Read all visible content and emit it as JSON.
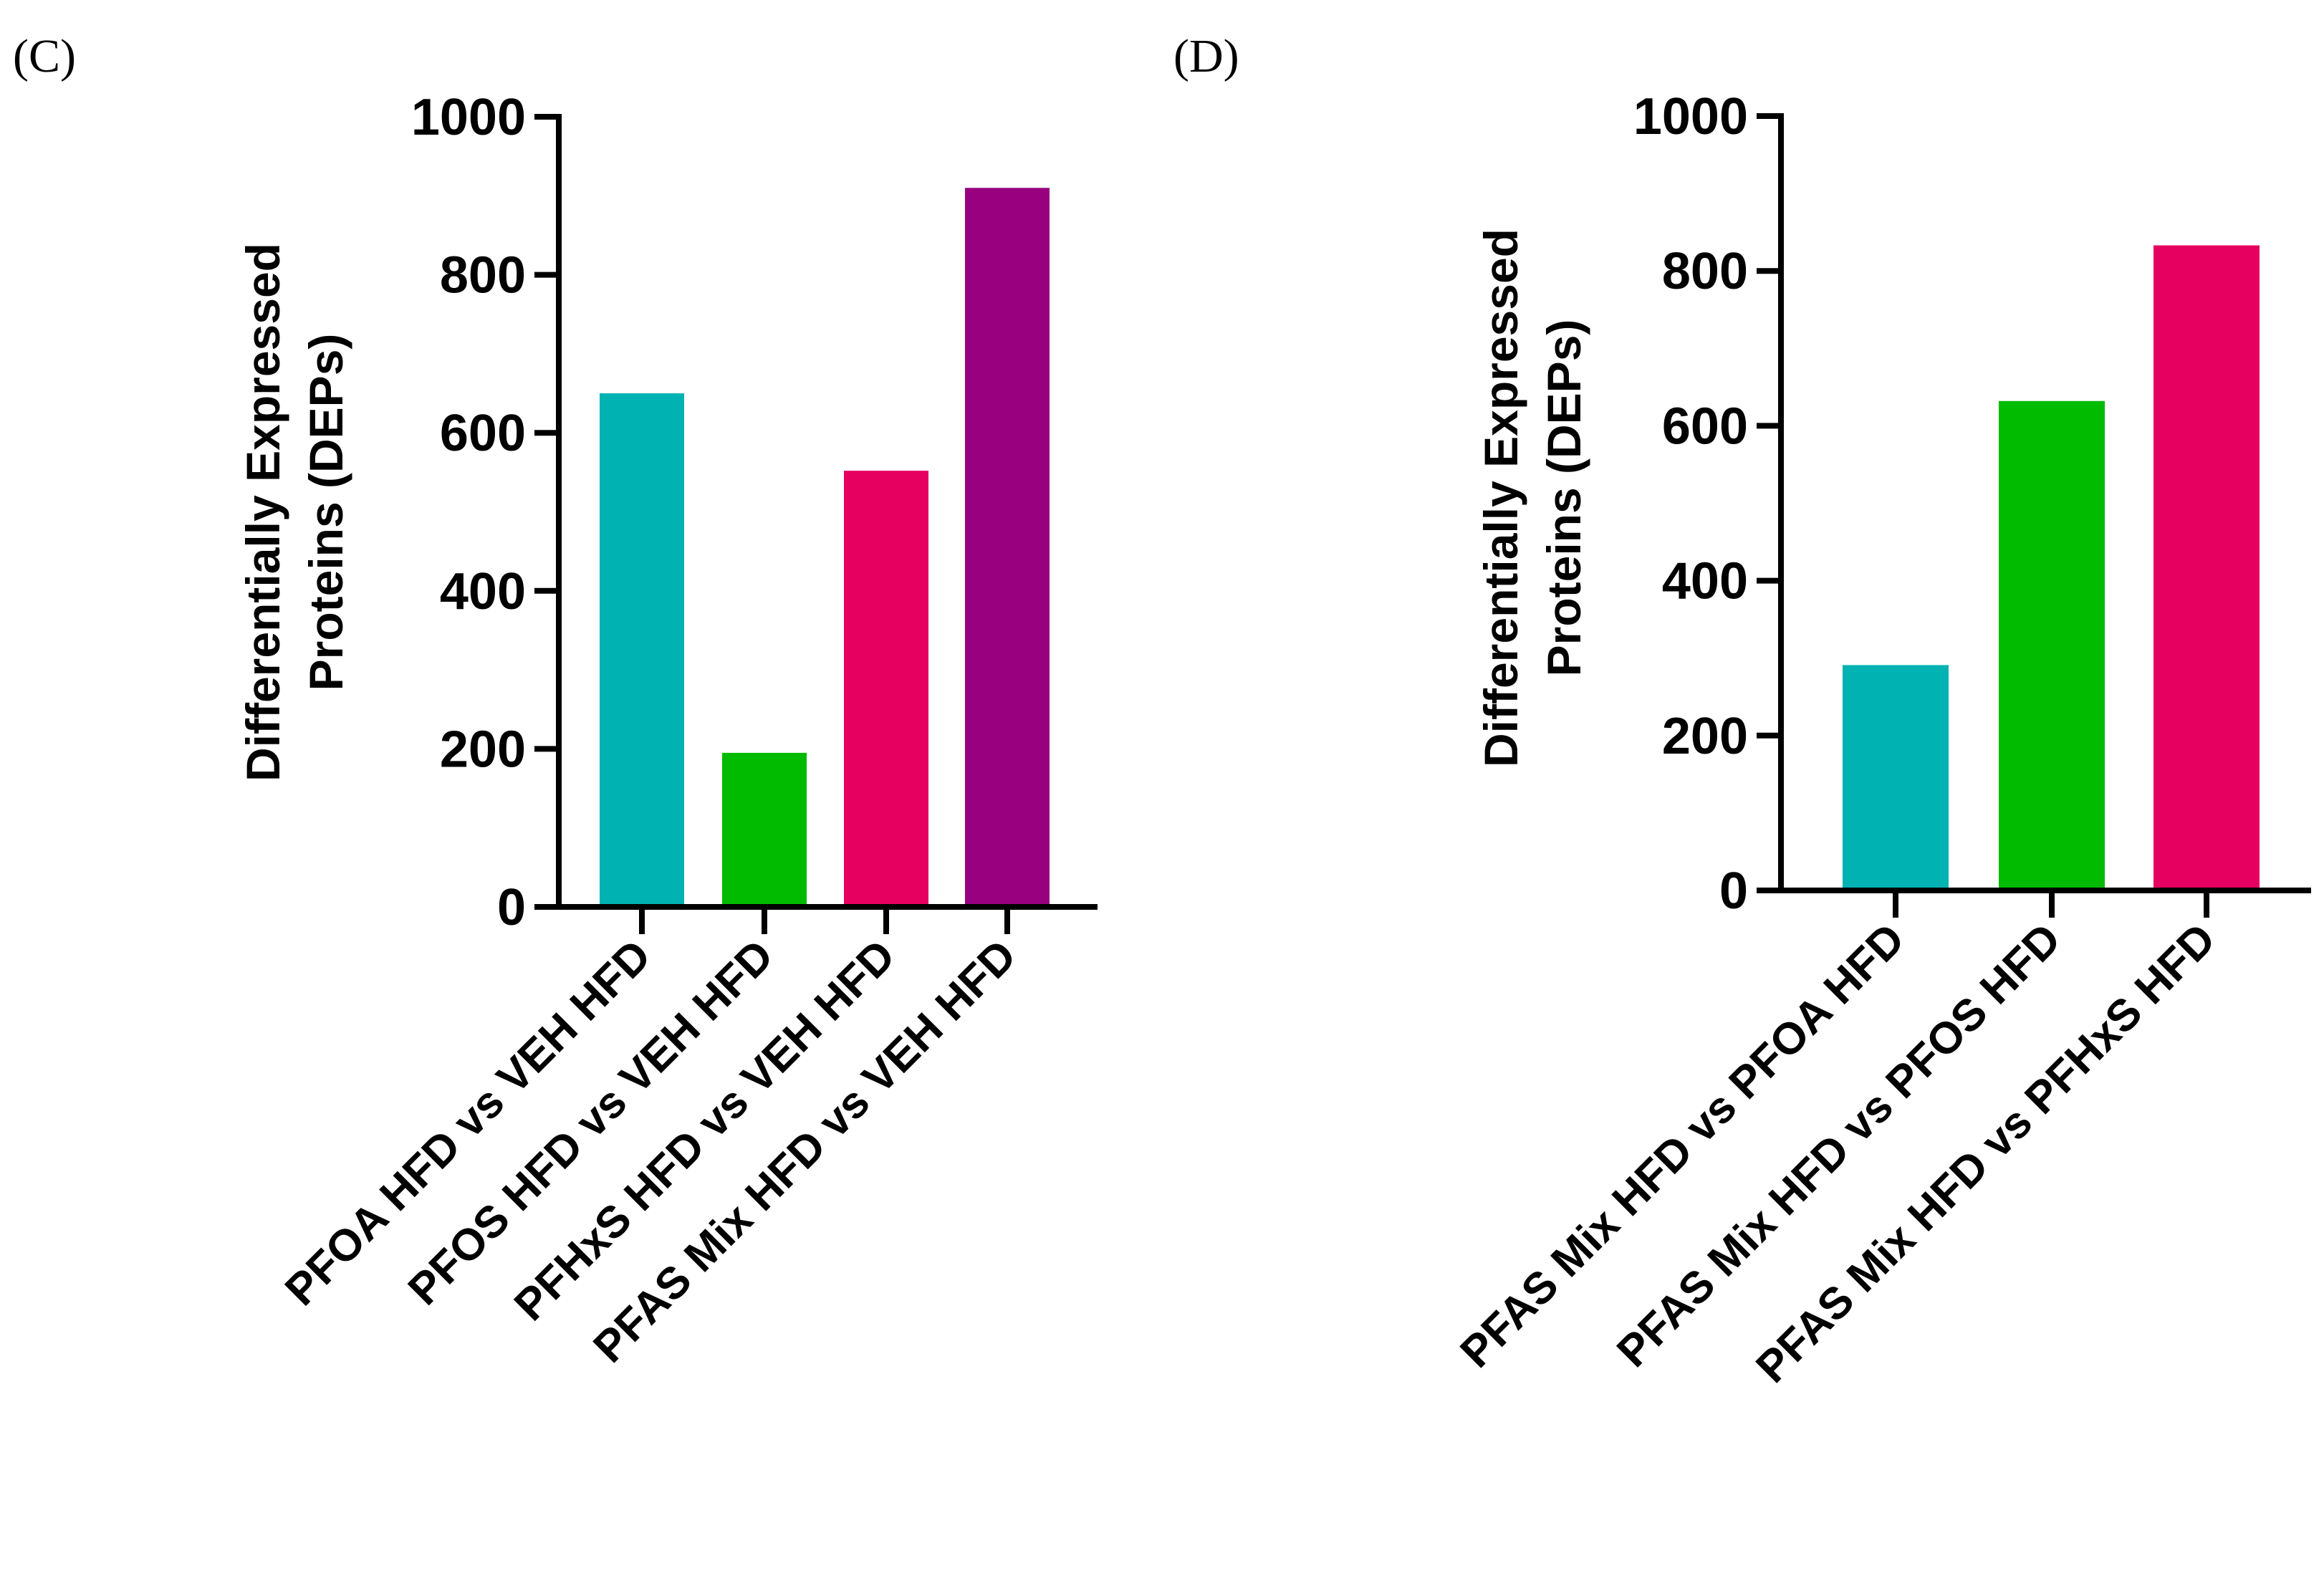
{
  "chart_data": [
    {
      "panel_label": "(C)",
      "type": "bar",
      "title": "",
      "xlabel": "",
      "ylabel_lines": [
        "Differentially Expressed",
        "Proteins (DEPs)"
      ],
      "ylim": [
        0,
        1000
      ],
      "yticks": [
        0,
        200,
        400,
        600,
        800,
        1000
      ],
      "grid": false,
      "categories": [
        "PFOA HFD vs VEH HFD",
        "PFOS HFD vs VEH HFD",
        "PFHxS HFD vs VEH HFD",
        "PFAS Mix HFD vs VEH HFD"
      ],
      "values": [
        650,
        195,
        552,
        910
      ],
      "colors": [
        "#00b2b2",
        "#00bb00",
        "#e6005f",
        "#990080"
      ]
    },
    {
      "panel_label": "(D)",
      "type": "bar",
      "title": "",
      "xlabel": "",
      "ylabel_lines": [
        "Differentially Expressed",
        "Proteins (DEPs)"
      ],
      "ylim": [
        0,
        1000
      ],
      "yticks": [
        0,
        200,
        400,
        600,
        800,
        1000
      ],
      "grid": false,
      "categories": [
        "PFAS Mix HFD vs PFOA HFD",
        "PFAS Mix HFD vs PFOS HFD",
        "PFAS Mix HFD vs PFHxS HFD"
      ],
      "values": [
        291,
        632,
        833
      ],
      "colors": [
        "#00b2b2",
        "#00bb00",
        "#e6005f"
      ]
    }
  ]
}
